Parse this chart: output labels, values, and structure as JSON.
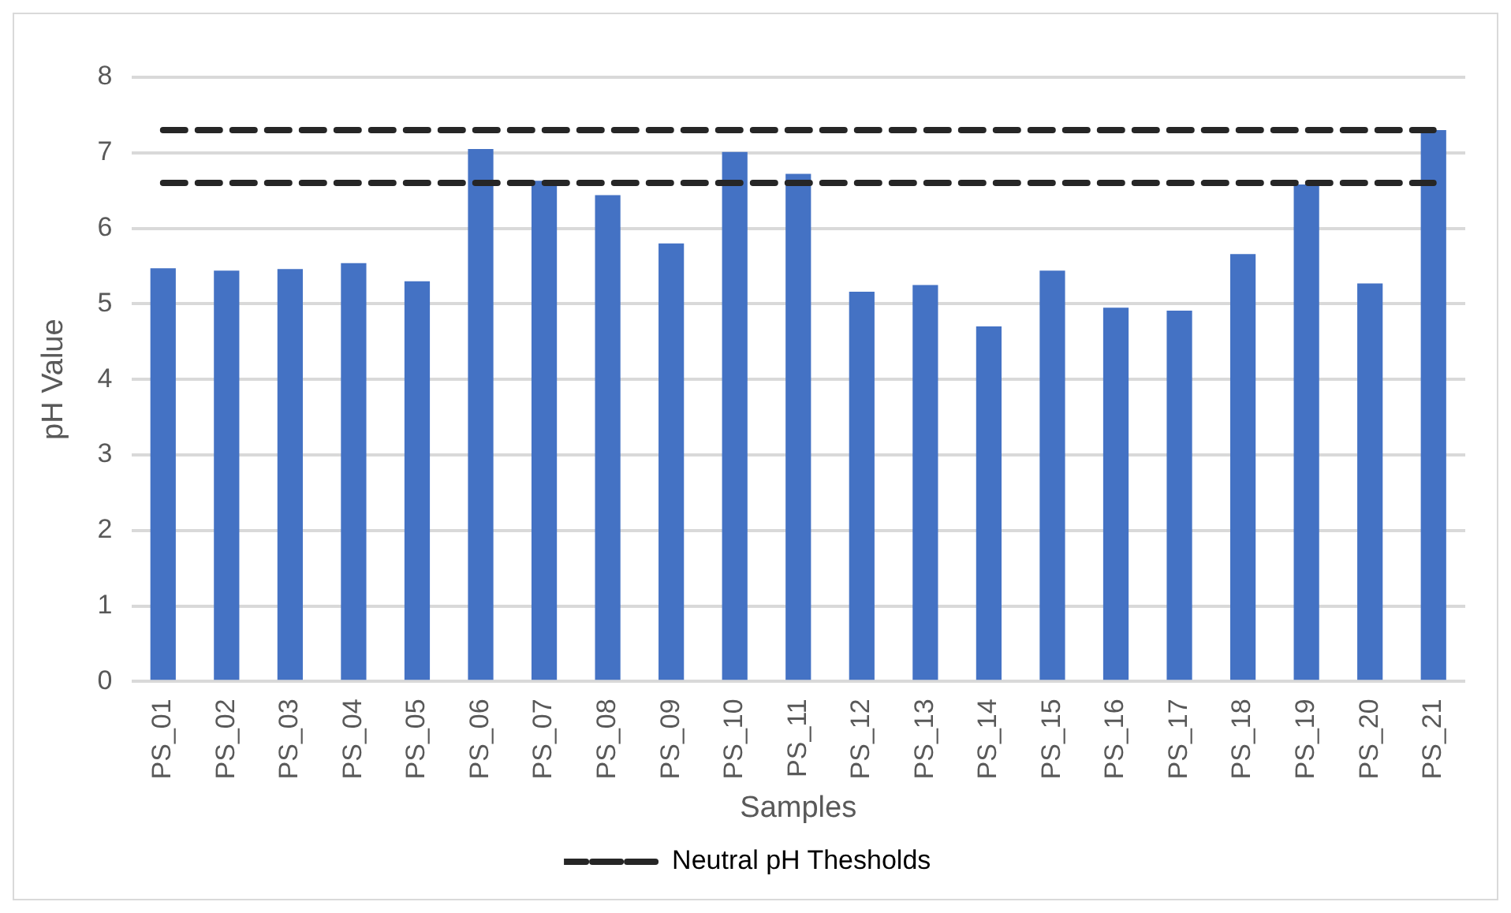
{
  "chart_data": {
    "type": "bar",
    "xlabel": "Samples",
    "ylabel": "pH Value",
    "categories": [
      "PS_01",
      "PS_02",
      "PS_03",
      "PS_04",
      "PS_05",
      "PS_06",
      "PS_07",
      "PS_08",
      "PS_09",
      "PS_10",
      "PS_11",
      "PS_12",
      "PS_13",
      "PS_14",
      "PS_15",
      "PS_16",
      "PS_17",
      "PS_18",
      "PS_19",
      "PS_20",
      "PS_21"
    ],
    "series": [
      {
        "color": "#4472c4",
        "values": [
          5.47,
          5.44,
          5.46,
          5.54,
          5.3,
          7.05,
          6.63,
          6.44,
          5.8,
          7.01,
          6.72,
          5.16,
          5.25,
          4.7,
          5.44,
          4.95,
          4.91,
          5.66,
          6.58,
          5.27,
          7.3
        ]
      },
      {
        "type": "line",
        "name": "Neutral pH Thesholds",
        "color": "#262626",
        "line_style": "dashed",
        "marker": "none",
        "values": [
          7.3,
          7.3,
          7.3,
          7.3,
          7.3,
          7.3,
          7.3,
          7.3,
          7.3,
          7.3,
          7.3,
          7.3,
          7.3,
          7.3,
          7.3,
          7.3,
          7.3,
          7.3,
          7.3,
          7.3,
          7.3
        ]
      },
      {
        "type": "line",
        "color": "#262626",
        "line_style": "dashed",
        "marker": "none",
        "values": [
          6.6,
          6.6,
          6.6,
          6.6,
          6.6,
          6.6,
          6.6,
          6.6,
          6.6,
          6.6,
          6.6,
          6.6,
          6.6,
          6.6,
          6.6,
          6.6,
          6.6,
          6.6,
          6.6,
          6.6,
          6.6
        ]
      }
    ],
    "ylim": [
      0,
      8
    ],
    "yticks": [
      0,
      1,
      2,
      3,
      4,
      5,
      6,
      7,
      8
    ],
    "grid": "y",
    "legend": "bottom"
  }
}
